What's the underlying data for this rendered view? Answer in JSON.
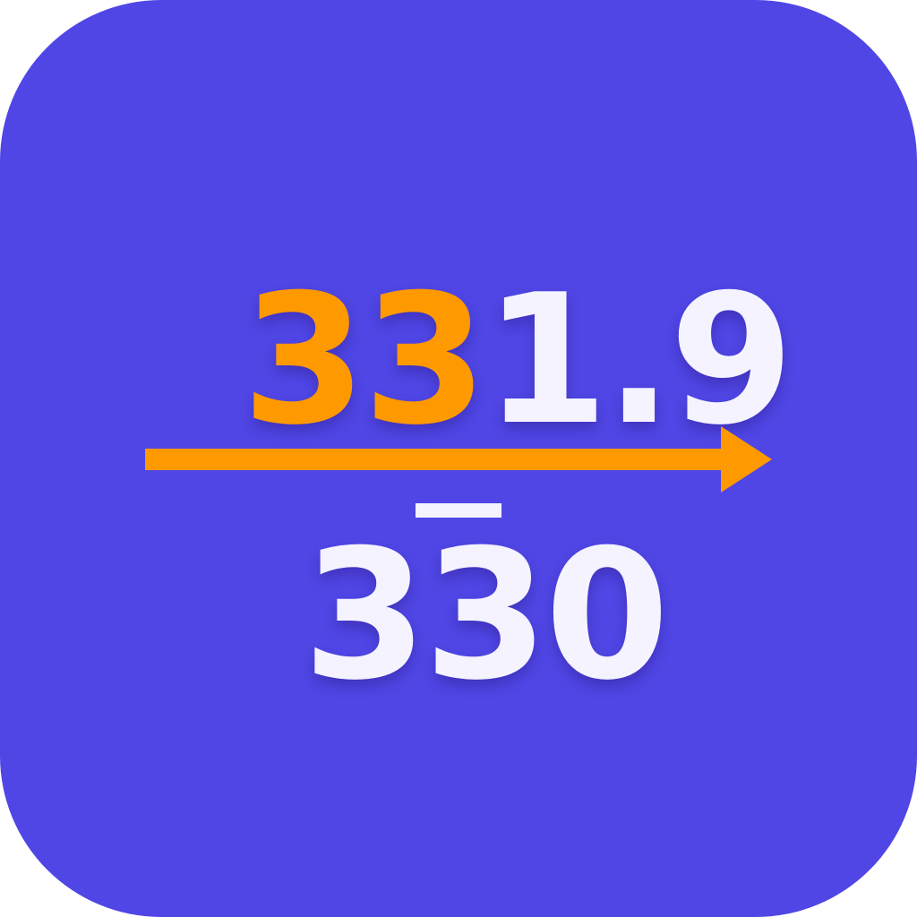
{
  "icon": {
    "background_color": "#4f46e5",
    "accent_color": "#ff9900",
    "light_color": "#f4f3ff"
  },
  "top_number": {
    "highlighted_digits": "33",
    "remaining_digits": "1.9"
  },
  "bottom_number": {
    "first_digit": "3",
    "overlined_digit": "3",
    "last_digit": "0"
  },
  "arrow": {
    "icon": "right-arrow-icon"
  }
}
